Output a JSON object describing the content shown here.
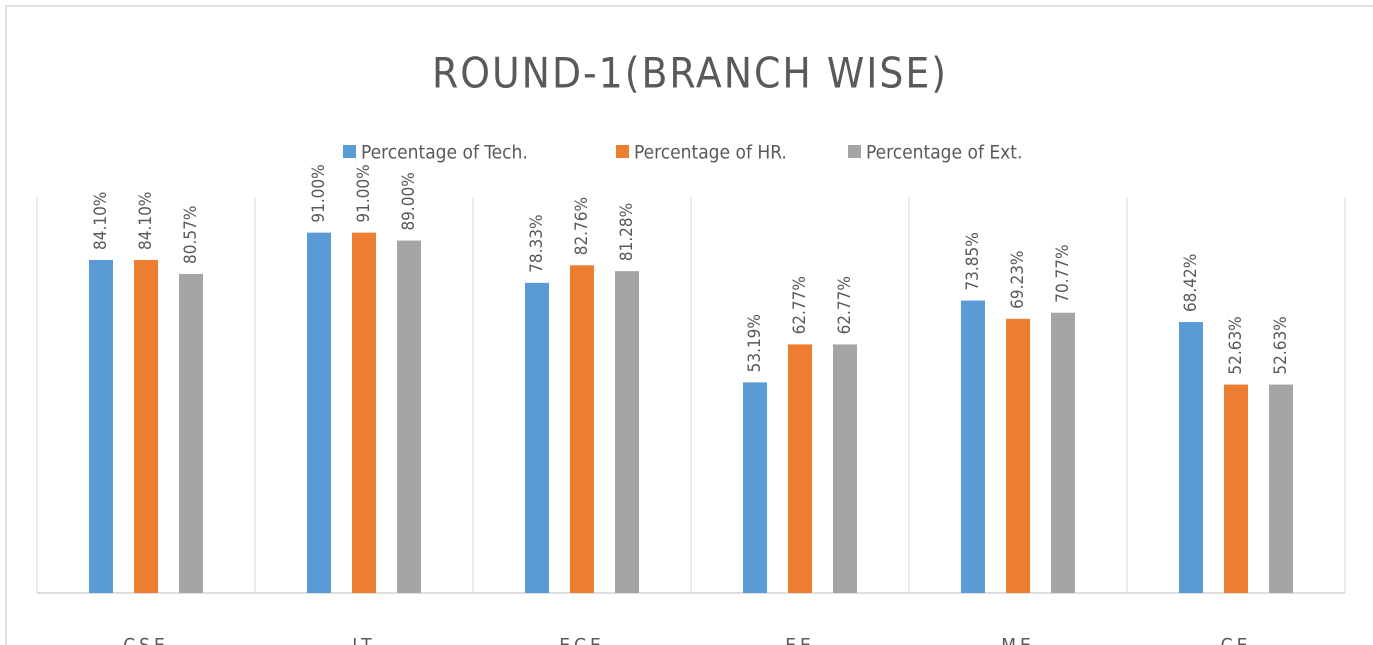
{
  "chart_data": {
    "type": "bar",
    "title": "ROUND-1(BRANCH WISE)",
    "categories": [
      "CSE",
      "IT",
      "ECE",
      "EE",
      "ME",
      "CE"
    ],
    "series": [
      {
        "name": "Percentage of Tech.",
        "color": "#5b9bd5",
        "values": [
          84.1,
          91.0,
          78.33,
          53.19,
          73.85,
          68.42
        ],
        "value_labels": [
          "84.10%",
          "91.00%",
          "78.33%",
          "53.19%",
          "73.85%",
          "68.42%"
        ]
      },
      {
        "name": "Percentage of HR.",
        "color": "#ed7d31",
        "values": [
          84.1,
          91.0,
          82.76,
          62.77,
          69.23,
          52.63
        ],
        "value_labels": [
          "84.10%",
          "91.00%",
          "82.76%",
          "62.77%",
          "69.23%",
          "52.63%"
        ]
      },
      {
        "name": "Percentage of Ext.",
        "color": "#a5a5a5",
        "values": [
          80.57,
          89.0,
          81.28,
          62.77,
          70.77,
          52.63
        ],
        "value_labels": [
          "80.57%",
          "89.00%",
          "81.28%",
          "62.77%",
          "70.77%",
          "52.63%"
        ]
      }
    ],
    "ylim": [
      0,
      100
    ],
    "legend": "top"
  }
}
